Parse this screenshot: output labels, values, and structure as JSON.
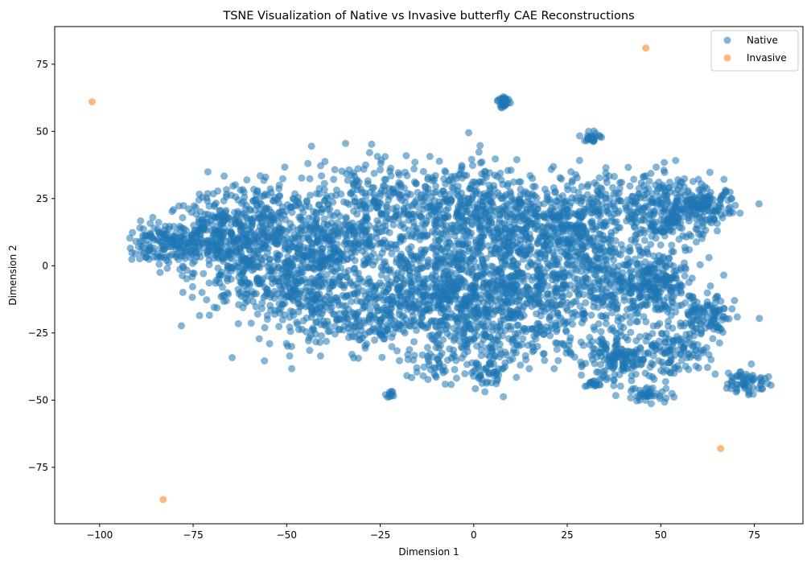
{
  "chart_data": {
    "type": "scatter",
    "title": "TSNE Visualization of Native vs Invasive butterfly CAE Reconstructions",
    "xlabel": "Dimension 1",
    "ylabel": "Dimension 2",
    "xlim": [
      -112,
      88
    ],
    "ylim": [
      -96,
      89
    ],
    "xticks": [
      -100,
      -75,
      -50,
      -25,
      0,
      25,
      50,
      75
    ],
    "yticks": [
      -75,
      -50,
      -25,
      0,
      25,
      50,
      75
    ],
    "grid": false,
    "legend_position": "top-right",
    "series": [
      {
        "name": "Native",
        "color": "#1f77b4",
        "clusters": [
          {
            "cx": -82,
            "cy": 8,
            "sx": 6,
            "sy": 4,
            "n": 160
          },
          {
            "cx": -68,
            "cy": 12,
            "sx": 7,
            "sy": 7,
            "n": 260
          },
          {
            "cx": -60,
            "cy": -2,
            "sx": 8,
            "sy": 8,
            "n": 200
          },
          {
            "cx": -55,
            "cy": 18,
            "sx": 7,
            "sy": 8,
            "n": 180
          },
          {
            "cx": -45,
            "cy": -10,
            "sx": 8,
            "sy": 9,
            "n": 260
          },
          {
            "cx": -38,
            "cy": 5,
            "sx": 8,
            "sy": 8,
            "n": 260
          },
          {
            "cx": -30,
            "cy": 22,
            "sx": 9,
            "sy": 9,
            "n": 220
          },
          {
            "cx": -28,
            "cy": -20,
            "sx": 8,
            "sy": 6,
            "n": 160
          },
          {
            "cx": -15,
            "cy": -10,
            "sx": 9,
            "sy": 8,
            "n": 280
          },
          {
            "cx": -10,
            "cy": 10,
            "sx": 9,
            "sy": 9,
            "n": 260
          },
          {
            "cx": -5,
            "cy": 28,
            "sx": 10,
            "sy": 6,
            "n": 140
          },
          {
            "cx": 0,
            "cy": -12,
            "sx": 7,
            "sy": 8,
            "n": 260
          },
          {
            "cx": 3,
            "cy": -30,
            "sx": 8,
            "sy": 6,
            "n": 140
          },
          {
            "cx": 5,
            "cy": 15,
            "sx": 8,
            "sy": 9,
            "n": 220
          },
          {
            "cx": 15,
            "cy": -5,
            "sx": 8,
            "sy": 8,
            "n": 260
          },
          {
            "cx": 20,
            "cy": 15,
            "sx": 7,
            "sy": 8,
            "n": 240
          },
          {
            "cx": 25,
            "cy": -20,
            "sx": 7,
            "sy": 7,
            "n": 140
          },
          {
            "cx": 33,
            "cy": 5,
            "sx": 6,
            "sy": 8,
            "n": 200
          },
          {
            "cx": 35,
            "cy": 25,
            "sx": 8,
            "sy": 6,
            "n": 120
          },
          {
            "cx": 42,
            "cy": -10,
            "sx": 6,
            "sy": 7,
            "n": 160
          },
          {
            "cx": 40,
            "cy": -35,
            "sx": 6,
            "sy": 4,
            "n": 180
          },
          {
            "cx": 50,
            "cy": -5,
            "sx": 5,
            "sy": 6,
            "n": 140
          },
          {
            "cx": 52,
            "cy": 20,
            "sx": 6,
            "sy": 7,
            "n": 240
          },
          {
            "cx": 62,
            "cy": 22,
            "sx": 4,
            "sy": 3,
            "n": 120
          },
          {
            "cx": 62,
            "cy": -20,
            "sx": 4,
            "sy": 5,
            "n": 120
          },
          {
            "cx": 55,
            "cy": -32,
            "sx": 4,
            "sy": 4,
            "n": 70
          },
          {
            "cx": 47,
            "cy": -48,
            "sx": 3,
            "sy": 1.5,
            "n": 40
          },
          {
            "cx": 8,
            "cy": 61,
            "sx": 0.8,
            "sy": 1.2,
            "n": 30
          },
          {
            "cx": 32,
            "cy": 48,
            "sx": 1.2,
            "sy": 1.2,
            "n": 25
          },
          {
            "cx": 73,
            "cy": -43,
            "sx": 3,
            "sy": 2.5,
            "n": 60
          },
          {
            "cx": -22,
            "cy": -48,
            "sx": 0.8,
            "sy": 0.6,
            "n": 10
          },
          {
            "cx": 4,
            "cy": -41,
            "sx": 3,
            "sy": 2,
            "n": 40
          },
          {
            "cx": -12,
            "cy": -38,
            "sx": 3,
            "sy": 3,
            "n": 30
          },
          {
            "cx": 32,
            "cy": -44,
            "sx": 1.5,
            "sy": 0.8,
            "n": 15
          }
        ]
      },
      {
        "name": "Invasive",
        "color": "#ff7f0e",
        "points": [
          {
            "x": -102,
            "y": 61
          },
          {
            "x": 46,
            "y": 81
          },
          {
            "x": 66,
            "y": -68
          },
          {
            "x": -83,
            "y": -87
          }
        ]
      }
    ]
  }
}
